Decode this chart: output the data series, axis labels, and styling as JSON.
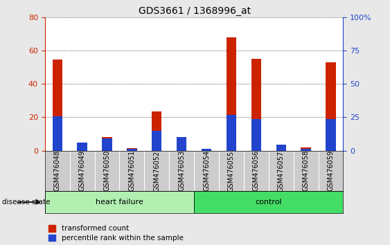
{
  "title": "GDS3661 / 1368996_at",
  "samples": [
    "GSM476048",
    "GSM476049",
    "GSM476050",
    "GSM476051",
    "GSM476052",
    "GSM476053",
    "GSM476054",
    "GSM476055",
    "GSM476056",
    "GSM476057",
    "GSM476058",
    "GSM476059"
  ],
  "transformed_count": [
    54.5,
    0,
    8.0,
    1.5,
    23.5,
    0,
    0,
    68.0,
    55.0,
    0,
    2.0,
    53.0
  ],
  "percentile_rank": [
    26.0,
    6.0,
    9.0,
    1.5,
    15.0,
    10.0,
    1.5,
    27.0,
    23.5,
    4.5,
    1.5,
    23.5
  ],
  "groups": [
    {
      "label": "heart failure",
      "start": 0,
      "end": 5,
      "color": "#b2f0b2"
    },
    {
      "label": "control",
      "start": 6,
      "end": 11,
      "color": "#44dd66"
    }
  ],
  "ylim_left": [
    0,
    80
  ],
  "ylim_right": [
    0,
    100
  ],
  "yticks_left": [
    0,
    20,
    40,
    60,
    80
  ],
  "yticks_right": [
    0,
    25,
    50,
    75,
    100
  ],
  "bar_color_red": "#cc2200",
  "bar_color_blue": "#2244cc",
  "bar_width": 0.4,
  "bg_color": "#e8e8e8",
  "plot_bg": "#ffffff",
  "tick_bg": "#cccccc",
  "grid_color": "#222222",
  "label_color_left": "#cc2200",
  "label_color_right": "#2244cc",
  "disease_state_label": "disease state",
  "legend_red": "transformed count",
  "legend_blue": "percentile rank within the sample",
  "title_fontsize": 10,
  "axis_fontsize": 8,
  "label_fontsize": 7,
  "legend_fontsize": 7.5
}
